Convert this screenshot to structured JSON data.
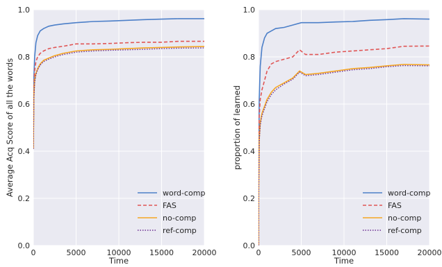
{
  "colors": {
    "plot_background": "#eaeaf2",
    "grid": "#ffffff",
    "word-comp": "#4c7fc8",
    "FAS": "#e05555",
    "no-comp": "#f5a623",
    "ref-comp": "#6a2c91"
  },
  "chart_data": [
    {
      "type": "line",
      "xlabel": "Time",
      "ylabel": "Average Acq Score of all the words",
      "xlim": [
        0,
        20000
      ],
      "ylim": [
        0.0,
        1.0
      ],
      "xticks": [
        "0",
        "5000",
        "10000",
        "15000",
        "20000"
      ],
      "yticks": [
        "0.0",
        "0.2",
        "0.4",
        "0.6",
        "0.8",
        "1.0"
      ],
      "grid": true,
      "legend_position": "bottom-right",
      "series": [
        {
          "name": "word-comp",
          "style": "solid",
          "x": [
            0,
            50,
            150,
            300,
            500,
            800,
            1200,
            1800,
            2500,
            3500,
            5000,
            7000,
            9000,
            11000,
            13000,
            15000,
            17000,
            20000
          ],
          "y": [
            0.41,
            0.7,
            0.8,
            0.86,
            0.89,
            0.91,
            0.92,
            0.93,
            0.935,
            0.94,
            0.945,
            0.95,
            0.952,
            0.955,
            0.958,
            0.96,
            0.962,
            0.962
          ]
        },
        {
          "name": "FAS",
          "style": "dashed",
          "x": [
            0,
            50,
            150,
            300,
            500,
            800,
            1200,
            1800,
            2500,
            3500,
            5000,
            7000,
            9000,
            11000,
            13000,
            15000,
            17000,
            20000
          ],
          "y": [
            0.41,
            0.66,
            0.74,
            0.78,
            0.8,
            0.815,
            0.825,
            0.835,
            0.84,
            0.845,
            0.855,
            0.855,
            0.857,
            0.86,
            0.862,
            0.862,
            0.866,
            0.866
          ]
        },
        {
          "name": "no-comp",
          "style": "solid",
          "x": [
            0,
            50,
            150,
            300,
            500,
            800,
            1200,
            1800,
            2500,
            3500,
            5000,
            7000,
            9000,
            11000,
            13000,
            15000,
            17000,
            20000
          ],
          "y": [
            0.41,
            0.63,
            0.7,
            0.73,
            0.75,
            0.77,
            0.785,
            0.795,
            0.805,
            0.815,
            0.825,
            0.83,
            0.832,
            0.835,
            0.838,
            0.84,
            0.842,
            0.844
          ]
        },
        {
          "name": "ref-comp",
          "style": "dotted",
          "x": [
            0,
            50,
            150,
            300,
            500,
            800,
            1200,
            1800,
            2500,
            3500,
            5000,
            7000,
            9000,
            11000,
            13000,
            15000,
            17000,
            20000
          ],
          "y": [
            0.41,
            0.62,
            0.69,
            0.725,
            0.745,
            0.765,
            0.78,
            0.79,
            0.8,
            0.81,
            0.82,
            0.825,
            0.828,
            0.83,
            0.832,
            0.835,
            0.837,
            0.838
          ]
        }
      ]
    },
    {
      "type": "line",
      "xlabel": "Time",
      "ylabel": "proportion of learned",
      "xlim": [
        0,
        20000
      ],
      "ylim": [
        0.0,
        1.0
      ],
      "xticks": [
        "0",
        "5000",
        "10000",
        "15000",
        "20000"
      ],
      "yticks": [
        "0.0",
        "0.2",
        "0.4",
        "0.6",
        "0.8",
        "1.0"
      ],
      "grid": true,
      "legend_position": "bottom-right",
      "series": [
        {
          "name": "word-comp",
          "style": "solid",
          "x": [
            0,
            20,
            80,
            200,
            400,
            700,
            1000,
            1500,
            2000,
            3000,
            4000,
            5000,
            7000,
            9000,
            11000,
            13000,
            15000,
            17000,
            20000
          ],
          "y": [
            0.0,
            0.35,
            0.62,
            0.76,
            0.84,
            0.88,
            0.9,
            0.91,
            0.92,
            0.925,
            0.935,
            0.945,
            0.945,
            0.948,
            0.95,
            0.955,
            0.958,
            0.962,
            0.96
          ]
        },
        {
          "name": "FAS",
          "style": "dashed",
          "x": [
            0,
            20,
            80,
            200,
            400,
            700,
            1000,
            1500,
            2000,
            3000,
            4000,
            4800,
            5500,
            7000,
            9000,
            11000,
            13000,
            15000,
            17000,
            20000
          ],
          "y": [
            0.0,
            0.3,
            0.55,
            0.62,
            0.66,
            0.7,
            0.74,
            0.77,
            0.78,
            0.79,
            0.8,
            0.83,
            0.81,
            0.81,
            0.82,
            0.825,
            0.83,
            0.835,
            0.845,
            0.846
          ]
        },
        {
          "name": "no-comp",
          "style": "solid",
          "x": [
            0,
            20,
            80,
            200,
            400,
            700,
            1000,
            1500,
            2000,
            3000,
            4000,
            4800,
            5500,
            7000,
            9000,
            11000,
            13000,
            15000,
            17000,
            20000
          ],
          "y": [
            0.0,
            0.25,
            0.45,
            0.52,
            0.56,
            0.59,
            0.62,
            0.65,
            0.67,
            0.69,
            0.71,
            0.74,
            0.725,
            0.73,
            0.74,
            0.75,
            0.755,
            0.762,
            0.768,
            0.766
          ]
        },
        {
          "name": "ref-comp",
          "style": "dotted",
          "x": [
            0,
            20,
            80,
            200,
            400,
            700,
            1000,
            1500,
            2000,
            3000,
            4000,
            4800,
            5500,
            7000,
            9000,
            11000,
            13000,
            15000,
            17000,
            20000
          ],
          "y": [
            0.0,
            0.24,
            0.44,
            0.51,
            0.55,
            0.58,
            0.61,
            0.64,
            0.66,
            0.685,
            0.705,
            0.735,
            0.72,
            0.725,
            0.735,
            0.745,
            0.75,
            0.758,
            0.763,
            0.762
          ]
        }
      ]
    }
  ]
}
